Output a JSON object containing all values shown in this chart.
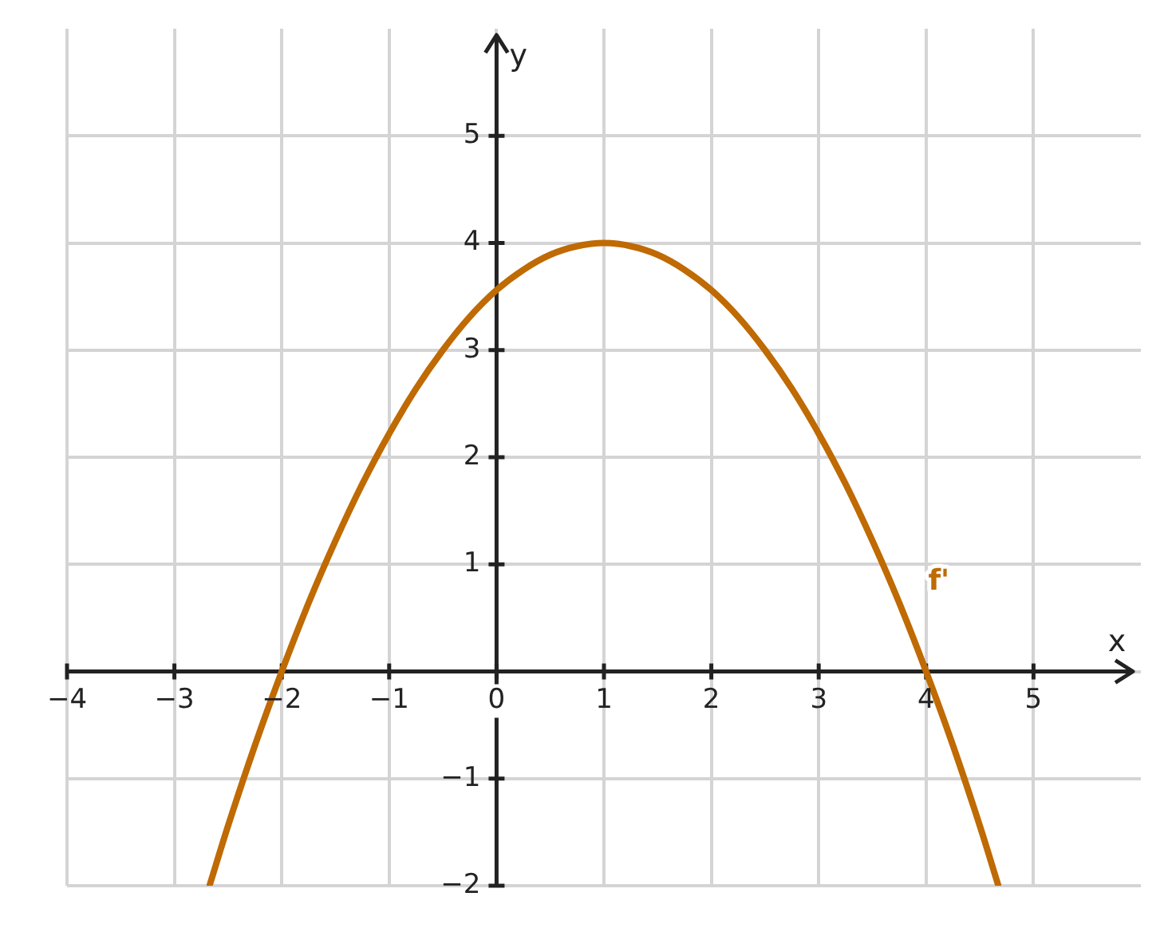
{
  "chart_data": {
    "type": "line",
    "xlabel": "x",
    "ylabel": "y",
    "x": [
      -2.67,
      -2.5,
      -2.25,
      -2,
      -1.75,
      -1.5,
      -1.25,
      -1,
      -0.75,
      -0.5,
      -0.25,
      0,
      0.25,
      0.5,
      0.75,
      1,
      1.25,
      1.5,
      1.75,
      2,
      2.25,
      2.5,
      2.75,
      3,
      3.25,
      3.5,
      3.75,
      4,
      4.25,
      4.5,
      4.67
    ],
    "series": [
      {
        "name": "f'",
        "color": "#bf6a02",
        "values": [
          -1.99,
          -1.44,
          -0.69,
          0,
          0.64,
          1.22,
          1.75,
          2.22,
          2.64,
          3.0,
          3.31,
          3.56,
          3.75,
          3.89,
          3.97,
          4.0,
          3.97,
          3.89,
          3.75,
          3.56,
          3.31,
          3.0,
          2.64,
          2.22,
          1.75,
          1.22,
          0.64,
          0,
          -0.69,
          -1.44,
          -1.99
        ]
      }
    ],
    "xlim": [
      -4,
      6
    ],
    "ylim": [
      -2,
      6
    ],
    "xticks": [
      {
        "value": -4,
        "label": "−4"
      },
      {
        "value": -3,
        "label": "−3"
      },
      {
        "value": -2,
        "label": "−2"
      },
      {
        "value": -1,
        "label": "−1"
      },
      {
        "value": 0,
        "label": "0"
      },
      1,
      2,
      3,
      4,
      5
    ],
    "yticks": [
      {
        "value": -2,
        "label": "−2"
      },
      {
        "value": -1,
        "label": "−1"
      },
      {
        "value": 0,
        "label": null
      },
      1,
      2,
      3,
      4,
      5
    ],
    "grid": true
  }
}
